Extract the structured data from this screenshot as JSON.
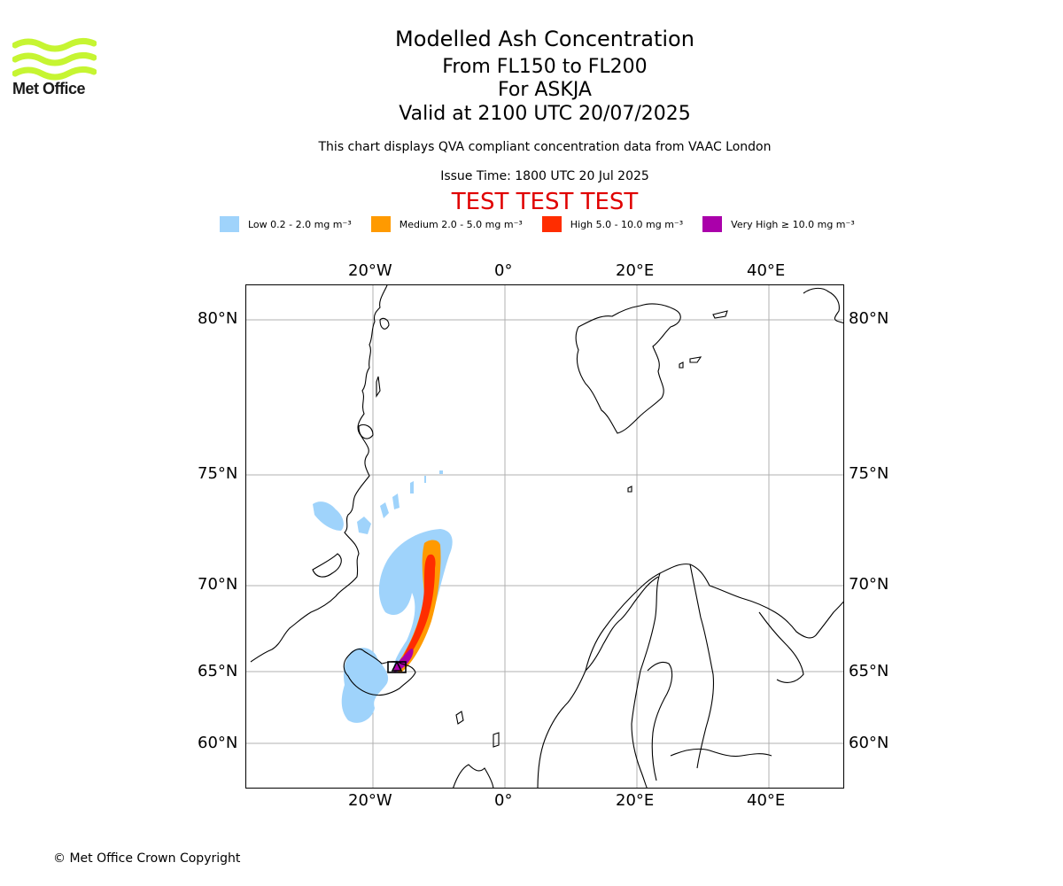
{
  "branding": {
    "logo_text": "Met Office",
    "copyright": "© Met Office Crown Copyright"
  },
  "header": {
    "title": "Modelled Ash Concentration",
    "level": "From FL150 to FL200",
    "volcano": "For ASKJA",
    "valid": "Valid at 2100 UTC 20/07/2025",
    "note": "This chart displays QVA compliant concentration data from VAAC London",
    "issue": "Issue Time: 1800 UTC 20 Jul 2025",
    "test_banner": "TEST TEST TEST"
  },
  "legend": [
    {
      "label": "Low 0.2 - 2.0 mg m⁻³",
      "color": "#9fd3fb"
    },
    {
      "label": "Medium 2.0 - 5.0 mg m⁻³",
      "color": "#ff9a00"
    },
    {
      "label": "High 5.0 - 10.0 mg m⁻³",
      "color": "#ff2d00"
    },
    {
      "label": "Very High ≥ 10.0 mg m⁻³",
      "color": "#aa00aa"
    }
  ],
  "map": {
    "lon_labels": [
      "20°W",
      "0°",
      "20°E",
      "40°E"
    ],
    "lat_labels": [
      "80°N",
      "75°N",
      "70°N",
      "65°N",
      "60°N"
    ],
    "grid_color": "#b0b0b0",
    "volcano_marker": "triangle-icon"
  }
}
